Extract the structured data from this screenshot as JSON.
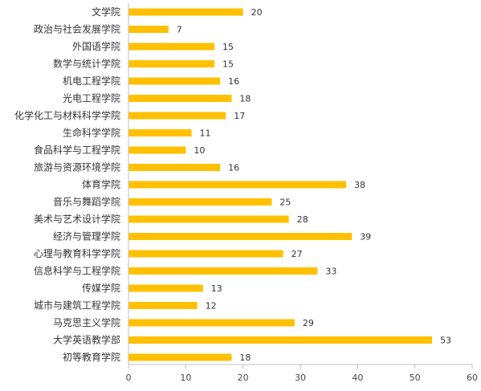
{
  "chart_data": {
    "type": "bar",
    "orientation": "horizontal",
    "title": "",
    "xlabel": "",
    "ylabel": "",
    "categories": [
      "文学院",
      "政治与社会发展学院",
      "外国语学院",
      "数学与统计学院",
      "机电工程学院",
      "光电工程学院",
      "化学化工与材料科学学院",
      "生命科学学院",
      "食品科学与工程学院",
      "旅游与资源环境学院",
      "体育学院",
      "音乐与舞蹈学院",
      "美术与艺术设计学院",
      "经济与管理学院",
      "心理与教育科学学院",
      "信息科学与工程学院",
      "传媒学院",
      "城市与建筑工程学院",
      "马克思主义学院",
      "大学英语教学部",
      "初等教育学院"
    ],
    "values": [
      20,
      7,
      15,
      15,
      16,
      18,
      17,
      11,
      10,
      16,
      38,
      25,
      28,
      39,
      27,
      33,
      13,
      12,
      29,
      53,
      18
    ],
    "value_labels": [
      "20",
      "7",
      "15",
      "15",
      "16",
      "18",
      "17",
      "11",
      "10",
      "16",
      "38",
      "25",
      "28",
      "39",
      "27",
      "33",
      "13",
      "12",
      "29",
      "53",
      "18"
    ],
    "xlim": [
      0,
      60
    ],
    "xticks": [
      0,
      10,
      20,
      30,
      40,
      50,
      60
    ],
    "xtick_labels": [
      "0",
      "10",
      "20",
      "30",
      "40",
      "50",
      "60"
    ],
    "grid": false,
    "legend": "none",
    "bar_color": "#FFC000",
    "axis_color": "#BFBFBF"
  }
}
